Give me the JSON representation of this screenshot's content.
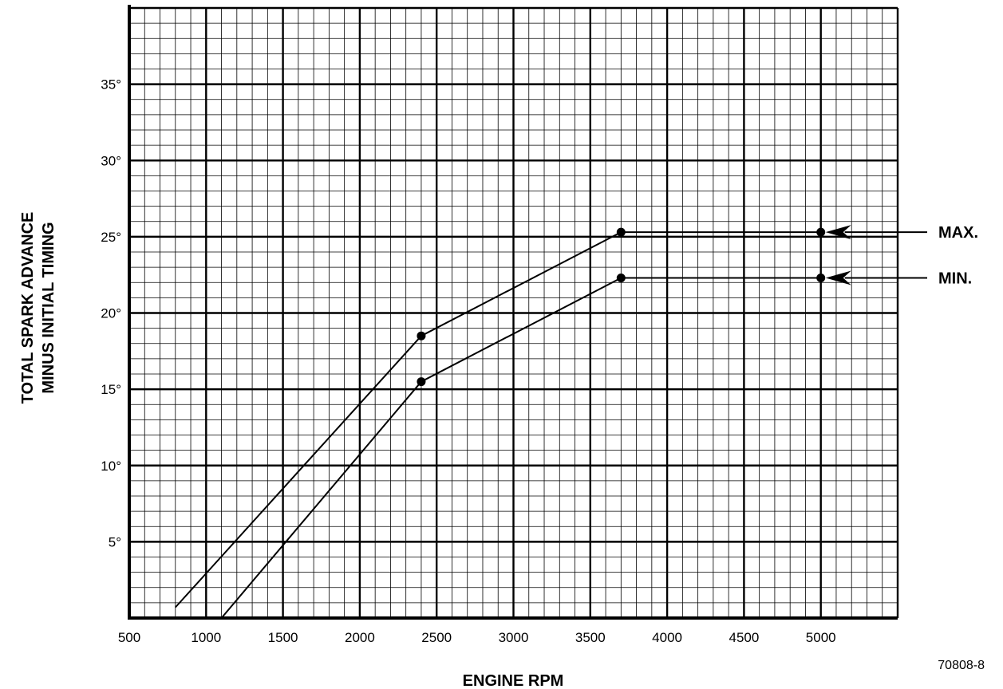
{
  "chart_data": {
    "type": "line",
    "title": "",
    "xlabel": "ENGINE RPM",
    "ylabel_lines": [
      "TOTAL SPARK ADVANCE",
      "MINUS INITIAL TIMING"
    ],
    "xlim": [
      500,
      5500
    ],
    "ylim": [
      0,
      40
    ],
    "x_ticks": [
      500,
      1000,
      1500,
      2000,
      2500,
      3000,
      3500,
      4000,
      4500,
      5000
    ],
    "x_tick_labels": [
      "500",
      "1000",
      "1500",
      "2000",
      "2500",
      "3000",
      "3500",
      "4000",
      "4500",
      "5000"
    ],
    "y_ticks": [
      5,
      10,
      15,
      20,
      25,
      30,
      35
    ],
    "y_tick_labels": [
      "5°",
      "10°",
      "15°",
      "20°",
      "25°",
      "30°",
      "35°"
    ],
    "grid": {
      "major_x_step": 500,
      "major_y_step": 5,
      "minor_x_step": 100,
      "minor_y_step": 1
    },
    "series": [
      {
        "name": "MAX.",
        "points": [
          [
            800,
            0.7
          ],
          [
            2400,
            18.5
          ],
          [
            3700,
            25.3
          ],
          [
            5000,
            25.3
          ]
        ],
        "markers": [
          [
            2400,
            18.5
          ],
          [
            3700,
            25.3
          ],
          [
            5000,
            25.3
          ]
        ],
        "arrow_y": 25.3
      },
      {
        "name": "MIN.",
        "points": [
          [
            1100,
            0.0
          ],
          [
            2400,
            15.5
          ],
          [
            3700,
            22.3
          ],
          [
            5000,
            22.3
          ]
        ],
        "markers": [
          [
            2400,
            15.5
          ],
          [
            3700,
            22.3
          ],
          [
            5000,
            22.3
          ]
        ],
        "arrow_y": 22.3
      }
    ],
    "figure_id": "70808-8"
  },
  "colors": {
    "ink": "#000000",
    "background": "#ffffff"
  }
}
